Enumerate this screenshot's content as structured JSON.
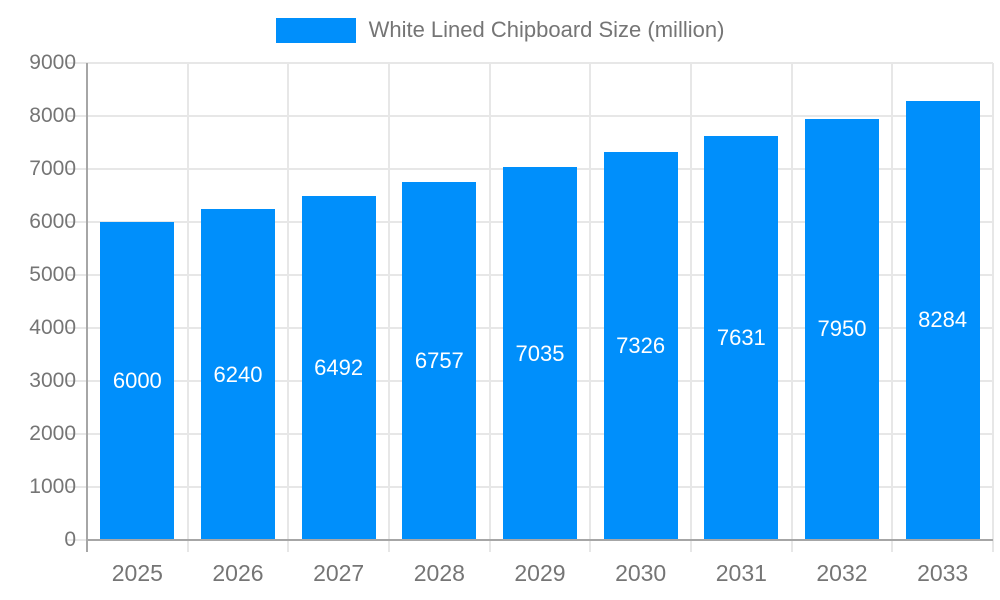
{
  "chart_data": {
    "type": "bar",
    "title": "White Lined Chipboard Size (million)",
    "legend": [
      "White Lined Chipboard Size (million)"
    ],
    "legend_position": "top",
    "categories": [
      "2025",
      "2026",
      "2027",
      "2028",
      "2029",
      "2030",
      "2031",
      "2032",
      "2033"
    ],
    "values": [
      6000,
      6240,
      6492,
      6757,
      7035,
      7326,
      7631,
      7950,
      8284
    ],
    "xlabel": "",
    "ylabel": "",
    "ylim": [
      0,
      9000
    ],
    "ytick_step": 1000,
    "yticks": [
      0,
      1000,
      2000,
      3000,
      4000,
      5000,
      6000,
      7000,
      8000,
      9000
    ],
    "grid": true,
    "bar_labels_inside": true,
    "colors": {
      "bar": "#008ffb",
      "grid": "#e7e7e7",
      "axis": "#a6a6a6",
      "text": "#757575",
      "value_label": "#ffffff",
      "background": "#ffffff"
    }
  }
}
